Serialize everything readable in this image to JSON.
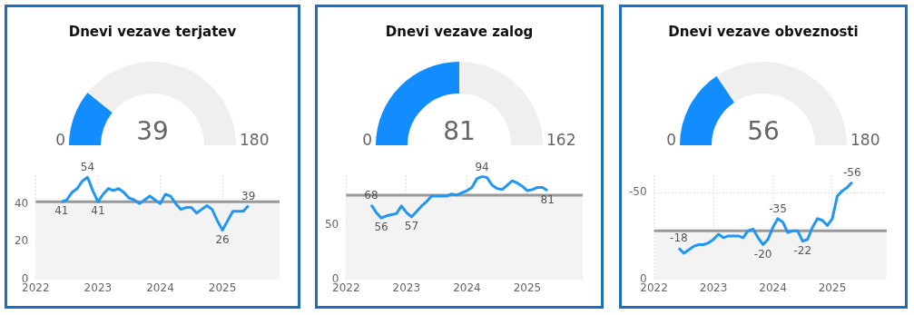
{
  "chart_data": [
    {
      "type": "donut",
      "title": "Dnevi vezave terjatev",
      "categories": [
        null,
        null
      ],
      "values": [
        21.7,
        78.3
      ],
      "colors": [
        "#118dff",
        "#f1efed"
      ],
      "annotations": [
        "39",
        "0",
        "180"
      ]
    },
    {
      "type": "line",
      "x": [
        "2022-06",
        "2022-07",
        "2022-08",
        "2022-09",
        "2022-10",
        "2022-11",
        "2022-12",
        "2023-01",
        "2023-02",
        "2023-03",
        "2023-04",
        "2023-05",
        "2023-06",
        "2023-07",
        "2023-08",
        "2023-09",
        "2023-10",
        "2023-11",
        "2023-12",
        "2024-01",
        "2024-02",
        "2024-03",
        "2024-04",
        "2024-05",
        "2024-06",
        "2024-07",
        "2024-08",
        "2024-09",
        "2024-10",
        "2024-11",
        "2024-12",
        "2025-01",
        "2025-02",
        "2025-03",
        "2025-04",
        "2025-05",
        "2025-06"
      ],
      "series": [
        {
          "color": "#2196f3",
          "values": [
            41,
            42,
            46,
            48,
            52,
            54,
            47,
            41,
            45,
            48,
            47,
            48,
            46,
            43,
            42,
            40,
            42,
            44,
            42,
            40,
            45,
            44,
            40,
            37,
            38,
            38,
            35,
            37,
            39,
            37,
            31,
            26,
            31,
            36,
            36,
            36,
            39
          ],
          "value_labels": [
            "41",
            null,
            null,
            null,
            null,
            "54",
            null,
            "41",
            null,
            null,
            null,
            null,
            null,
            null,
            null,
            null,
            null,
            null,
            null,
            null,
            null,
            null,
            null,
            null,
            null,
            null,
            null,
            null,
            null,
            null,
            null,
            "26",
            null,
            null,
            null,
            null,
            "39"
          ]
        }
      ],
      "xlim": [
        "2022-01",
        "2025-12"
      ],
      "xticks": [
        "2022",
        "2023",
        "2024",
        "2025"
      ],
      "ylim": [
        0,
        55
      ],
      "yticks": [
        0,
        20,
        40
      ],
      "grid": true,
      "marker": "none",
      "line_style": "solid",
      "ref_lines": [
        {
          "axis": "y",
          "value": 41,
          "color": "#999999"
        }
      ],
      "bands": [
        {
          "axis": "y",
          "from": 0,
          "to": 41,
          "color": "#f3f3f3"
        }
      ]
    },
    {
      "type": "donut",
      "title": "Dnevi vezave zalog",
      "categories": [
        null,
        null
      ],
      "values": [
        50,
        50
      ],
      "colors": [
        "#118dff",
        "#f1efed"
      ],
      "annotations": [
        "81",
        "0",
        "162"
      ]
    },
    {
      "type": "line",
      "x": [
        "2022-06",
        "2022-07",
        "2022-08",
        "2022-09",
        "2022-10",
        "2022-11",
        "2022-12",
        "2023-01",
        "2023-02",
        "2023-03",
        "2023-04",
        "2023-05",
        "2023-06",
        "2023-07",
        "2023-08",
        "2023-09",
        "2023-10",
        "2023-11",
        "2023-12",
        "2024-01",
        "2024-02",
        "2024-03",
        "2024-04",
        "2024-05",
        "2024-06",
        "2024-07",
        "2024-08",
        "2024-09",
        "2024-10",
        "2024-11",
        "2024-12",
        "2025-01",
        "2025-02",
        "2025-03",
        "2025-04",
        "2025-05"
      ],
      "series": [
        {
          "color": "#2196f3",
          "values": [
            68,
            61,
            56,
            58,
            59,
            60,
            67,
            61,
            57,
            62,
            67,
            71,
            76,
            76,
            76,
            76,
            78,
            77,
            79,
            81,
            84,
            92,
            94,
            93,
            86,
            83,
            82,
            86,
            90,
            88,
            85,
            81,
            82,
            84,
            84,
            81
          ],
          "value_labels": [
            "68",
            null,
            "56",
            null,
            null,
            null,
            null,
            null,
            "57",
            null,
            null,
            null,
            null,
            null,
            null,
            null,
            null,
            null,
            null,
            null,
            null,
            null,
            "94",
            null,
            null,
            null,
            null,
            null,
            null,
            null,
            null,
            null,
            null,
            null,
            null,
            "81"
          ]
        }
      ],
      "xlim": [
        "2022-01",
        "2025-12"
      ],
      "xticks": [
        "2022",
        "2023",
        "2024",
        "2025"
      ],
      "ylim": [
        0,
        95
      ],
      "yticks": [
        0,
        50
      ],
      "grid": true,
      "marker": "none",
      "line_style": "solid",
      "ref_lines": [
        {
          "axis": "y",
          "value": 77,
          "color": "#999999"
        }
      ],
      "bands": [
        {
          "axis": "y",
          "from": 0,
          "to": 77,
          "color": "#f3f3f3"
        }
      ]
    },
    {
      "type": "donut",
      "title": "Dnevi vezave obveznosti",
      "categories": [
        null,
        null
      ],
      "values": [
        31.1,
        68.9
      ],
      "colors": [
        "#118dff",
        "#f1efed"
      ],
      "annotations": [
        "56",
        "0",
        "180"
      ]
    },
    {
      "type": "line",
      "x": [
        "2022-06",
        "2022-07",
        "2022-08",
        "2022-09",
        "2022-10",
        "2022-11",
        "2022-12",
        "2023-01",
        "2023-02",
        "2023-03",
        "2023-04",
        "2023-05",
        "2023-06",
        "2023-07",
        "2023-08",
        "2023-09",
        "2023-10",
        "2023-11",
        "2023-12",
        "2024-01",
        "2024-02",
        "2024-03",
        "2024-04",
        "2024-05",
        "2024-06",
        "2024-07",
        "2024-08",
        "2024-09",
        "2024-10",
        "2024-11",
        "2024-12",
        "2025-01",
        "2025-02",
        "2025-03",
        "2025-04",
        "2025-05"
      ],
      "series": [
        {
          "color": "#2196f3",
          "values": [
            -18,
            -15,
            -17,
            -19,
            -20,
            -20,
            -21,
            -23,
            -26,
            -24,
            -25,
            -25,
            -25,
            -24,
            -28,
            -29,
            -24,
            -20,
            -23,
            -30,
            -35,
            -33,
            -27,
            -28,
            -28,
            -22,
            -23,
            -30,
            -35,
            -34,
            -31,
            -35,
            -48,
            -51,
            -53,
            -56
          ],
          "value_labels": [
            "-18",
            null,
            null,
            null,
            null,
            null,
            null,
            null,
            null,
            null,
            null,
            null,
            null,
            null,
            null,
            null,
            null,
            "-20",
            null,
            null,
            "-35",
            null,
            null,
            null,
            null,
            "-22",
            null,
            null,
            null,
            null,
            null,
            null,
            null,
            null,
            null,
            "-56"
          ]
        }
      ],
      "xlim": [
        "2022-01",
        "2025-12"
      ],
      "xticks": [
        "2022",
        "2023",
        "2024",
        "2025"
      ],
      "ylim": [
        0,
        -60
      ],
      "yticks": [
        0,
        -50
      ],
      "grid": true,
      "marker": "none",
      "line_style": "solid",
      "ref_lines": [
        {
          "axis": "y",
          "value": -28,
          "color": "#999999"
        }
      ],
      "bands": [
        {
          "axis": "y",
          "from": 0,
          "to": -28,
          "color": "#f3f3f3"
        }
      ]
    }
  ]
}
